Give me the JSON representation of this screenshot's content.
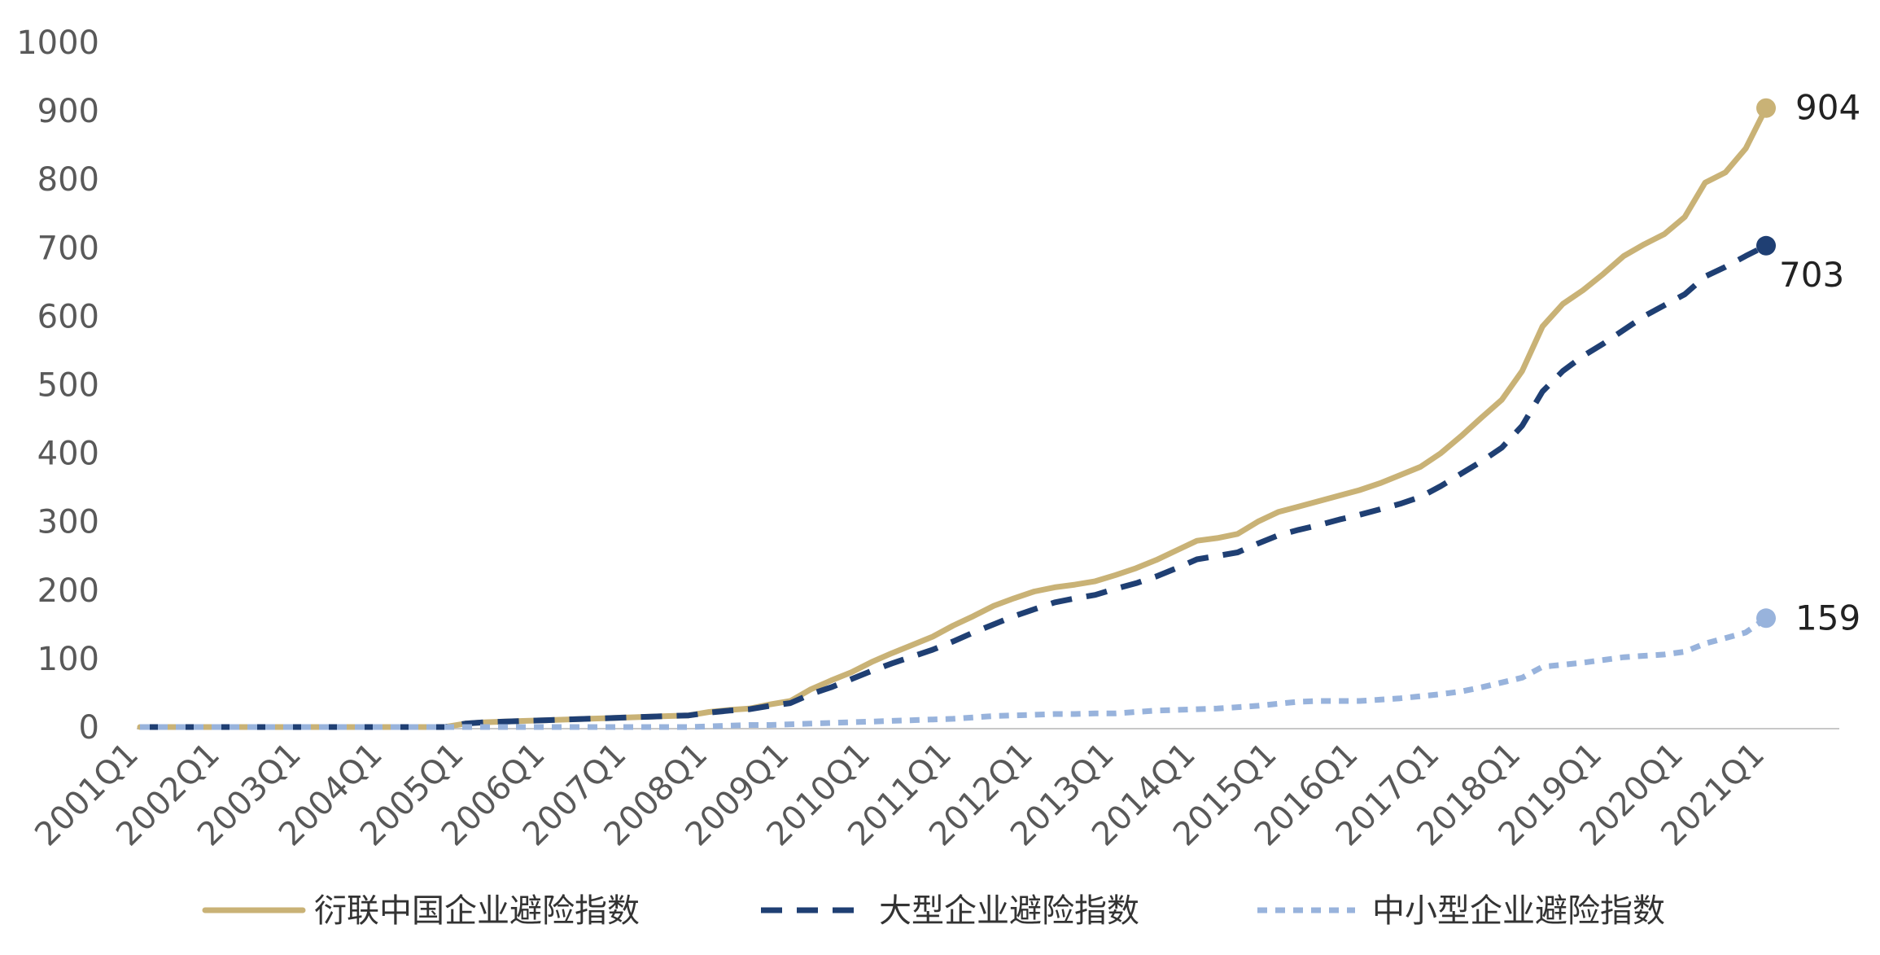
{
  "chart_data": {
    "type": "line",
    "title": "",
    "xlabel": "",
    "ylabel": "",
    "ylim": [
      0,
      1000
    ],
    "yticks": [
      "0",
      "100",
      "200",
      "300",
      "400",
      "500",
      "600",
      "700",
      "800",
      "900",
      "1000"
    ],
    "x_tick_labels": [
      "2001Q1",
      "2002Q1",
      "2003Q1",
      "2004Q1",
      "2005Q1",
      "2006Q1",
      "2007Q1",
      "2008Q1",
      "2009Q1",
      "2010Q1",
      "2011Q1",
      "2012Q1",
      "2013Q1",
      "2014Q1",
      "2015Q1",
      "2016Q1",
      "2017Q1",
      "2018Q1",
      "2019Q1",
      "2020Q1",
      "2021Q1"
    ],
    "grid": false,
    "legend_position": "bottom",
    "x_start_label": "2001Q1",
    "x_end_label": "2021Q1",
    "series": [
      {
        "name": "衍联中国企业避险指数",
        "color": "#C9B276",
        "dash": "solid",
        "end_label": "904",
        "values": [
          0,
          0,
          0,
          0,
          0,
          0,
          0,
          0,
          0,
          0,
          0,
          0,
          0,
          0,
          0,
          0,
          5,
          7,
          8,
          9,
          10,
          11,
          12,
          13,
          14,
          15,
          16,
          17,
          22,
          25,
          27,
          33,
          38,
          55,
          68,
          80,
          95,
          108,
          120,
          132,
          148,
          162,
          177,
          188,
          198,
          204,
          208,
          213,
          222,
          232,
          244,
          258,
          272,
          276,
          282,
          300,
          314,
          322,
          330,
          338,
          346,
          356,
          368,
          380,
          400,
          425,
          452,
          478,
          520,
          585,
          618,
          638,
          662,
          688,
          705,
          720,
          745,
          795,
          810,
          845,
          904
        ]
      },
      {
        "name": "大型企业避险指数",
        "color": "#1F3F73",
        "dash": "dashed",
        "end_label": "703",
        "values": [
          0,
          0,
          0,
          0,
          0,
          0,
          0,
          0,
          0,
          0,
          0,
          0,
          0,
          0,
          0,
          0,
          5,
          7,
          8,
          9,
          10,
          11,
          12,
          13,
          14,
          15,
          16,
          17,
          21,
          24,
          26,
          31,
          35,
          48,
          58,
          70,
          82,
          93,
          103,
          113,
          125,
          138,
          150,
          162,
          172,
          182,
          188,
          193,
          202,
          210,
          220,
          232,
          245,
          250,
          255,
          268,
          280,
          288,
          295,
          303,
          310,
          318,
          326,
          336,
          352,
          370,
          388,
          408,
          440,
          490,
          520,
          542,
          560,
          580,
          600,
          616,
          632,
          658,
          672,
          688,
          703
        ]
      },
      {
        "name": "中小型企业避险指数",
        "color": "#98B3DC",
        "dash": "dotted",
        "end_label": "159",
        "values": [
          0,
          0,
          0,
          0,
          0,
          0,
          0,
          0,
          0,
          0,
          0,
          0,
          0,
          0,
          0,
          0,
          0,
          0,
          0,
          0,
          0,
          0,
          0,
          0,
          0,
          0,
          0,
          0,
          1,
          2,
          3,
          3,
          4,
          5,
          6,
          7,
          8,
          9,
          10,
          11,
          12,
          14,
          16,
          17,
          18,
          19,
          19,
          20,
          20,
          22,
          24,
          25,
          26,
          27,
          29,
          31,
          34,
          37,
          38,
          38,
          38,
          40,
          42,
          45,
          48,
          52,
          58,
          65,
          72,
          88,
          91,
          94,
          98,
          102,
          104,
          106,
          110,
          122,
          130,
          138,
          159
        ]
      }
    ]
  }
}
